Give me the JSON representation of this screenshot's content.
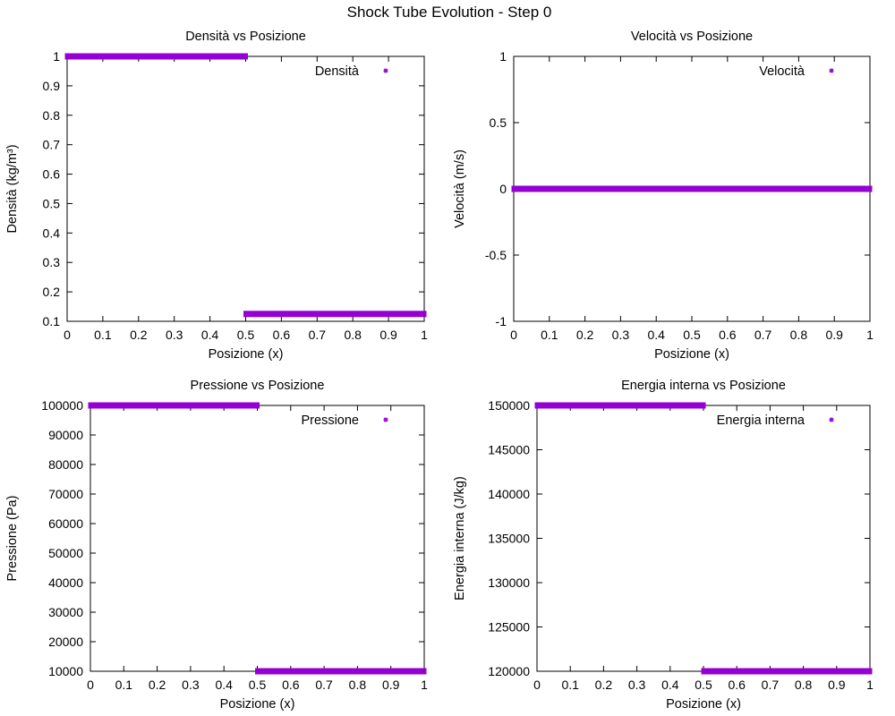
{
  "figure": {
    "title": "Shock Tube Evolution - Step 0"
  },
  "chart_data": [
    {
      "type": "scatter",
      "title": "Densità vs Posizione",
      "xlabel": "Posizione (x)",
      "ylabel": "Densità (kg/m³)",
      "xlim": [
        0,
        1
      ],
      "ylim": [
        0.1,
        1
      ],
      "xticks": [
        "0",
        "0.1",
        "0.2",
        "0.3",
        "0.4",
        "0.5",
        "0.6",
        "0.7",
        "0.8",
        "0.9",
        "1"
      ],
      "yticks": [
        "0.1",
        "0.2",
        "0.3",
        "0.4",
        "0.5",
        "0.6",
        "0.7",
        "0.8",
        "0.9",
        "1"
      ],
      "legend_position": "top-right",
      "grid": false,
      "series": [
        {
          "name": "Densità",
          "color": "#9400d3",
          "segments": [
            {
              "x_start": 0,
              "x_end": 0.5,
              "y": 1.0
            },
            {
              "x_start": 0.5,
              "x_end": 1.0,
              "y": 0.125
            }
          ]
        }
      ]
    },
    {
      "type": "scatter",
      "title": "Velocità vs Posizione",
      "xlabel": "Posizione (x)",
      "ylabel": "Velocità (m/s)",
      "xlim": [
        0,
        1
      ],
      "ylim": [
        -1,
        1
      ],
      "xticks": [
        "0",
        "0.1",
        "0.2",
        "0.3",
        "0.4",
        "0.5",
        "0.6",
        "0.7",
        "0.8",
        "0.9",
        "1"
      ],
      "yticks": [
        "-1",
        "-0.5",
        "0",
        "0.5",
        "1"
      ],
      "legend_position": "top-right",
      "grid": false,
      "series": [
        {
          "name": "Velocità",
          "color": "#9400d3",
          "segments": [
            {
              "x_start": 0,
              "x_end": 1.0,
              "y": 0
            }
          ]
        }
      ]
    },
    {
      "type": "scatter",
      "title": "Pressione vs Posizione",
      "xlabel": "Posizione (x)",
      "ylabel": "Pressione (Pa)",
      "xlim": [
        0,
        1
      ],
      "ylim": [
        10000,
        100000
      ],
      "xticks": [
        "0",
        "0.1",
        "0.2",
        "0.3",
        "0.4",
        "0.5",
        "0.6",
        "0.7",
        "0.8",
        "0.9",
        "1"
      ],
      "yticks": [
        "10000",
        "20000",
        "30000",
        "40000",
        "50000",
        "60000",
        "70000",
        "80000",
        "90000",
        "100000"
      ],
      "legend_position": "top-right",
      "grid": false,
      "series": [
        {
          "name": "Pressione",
          "color": "#9400d3",
          "segments": [
            {
              "x_start": 0,
              "x_end": 0.5,
              "y": 100000
            },
            {
              "x_start": 0.5,
              "x_end": 1.0,
              "y": 10000
            }
          ]
        }
      ]
    },
    {
      "type": "scatter",
      "title": "Energia interna vs Posizione",
      "xlabel": "Posizione (x)",
      "ylabel": "Energia interna (J/kg)",
      "xlim": [
        0,
        1
      ],
      "ylim": [
        120000,
        150000
      ],
      "xticks": [
        "0",
        "0.1",
        "0.2",
        "0.3",
        "0.4",
        "0.5",
        "0.6",
        "0.7",
        "0.8",
        "0.9",
        "1"
      ],
      "yticks": [
        "120000",
        "125000",
        "130000",
        "135000",
        "140000",
        "145000",
        "150000"
      ],
      "legend_position": "top-right",
      "grid": false,
      "series": [
        {
          "name": "Energia interna",
          "color": "#9400d3",
          "segments": [
            {
              "x_start": 0,
              "x_end": 0.5,
              "y": 150000
            },
            {
              "x_start": 0.5,
              "x_end": 1.0,
              "y": 120000
            }
          ]
        }
      ]
    }
  ]
}
